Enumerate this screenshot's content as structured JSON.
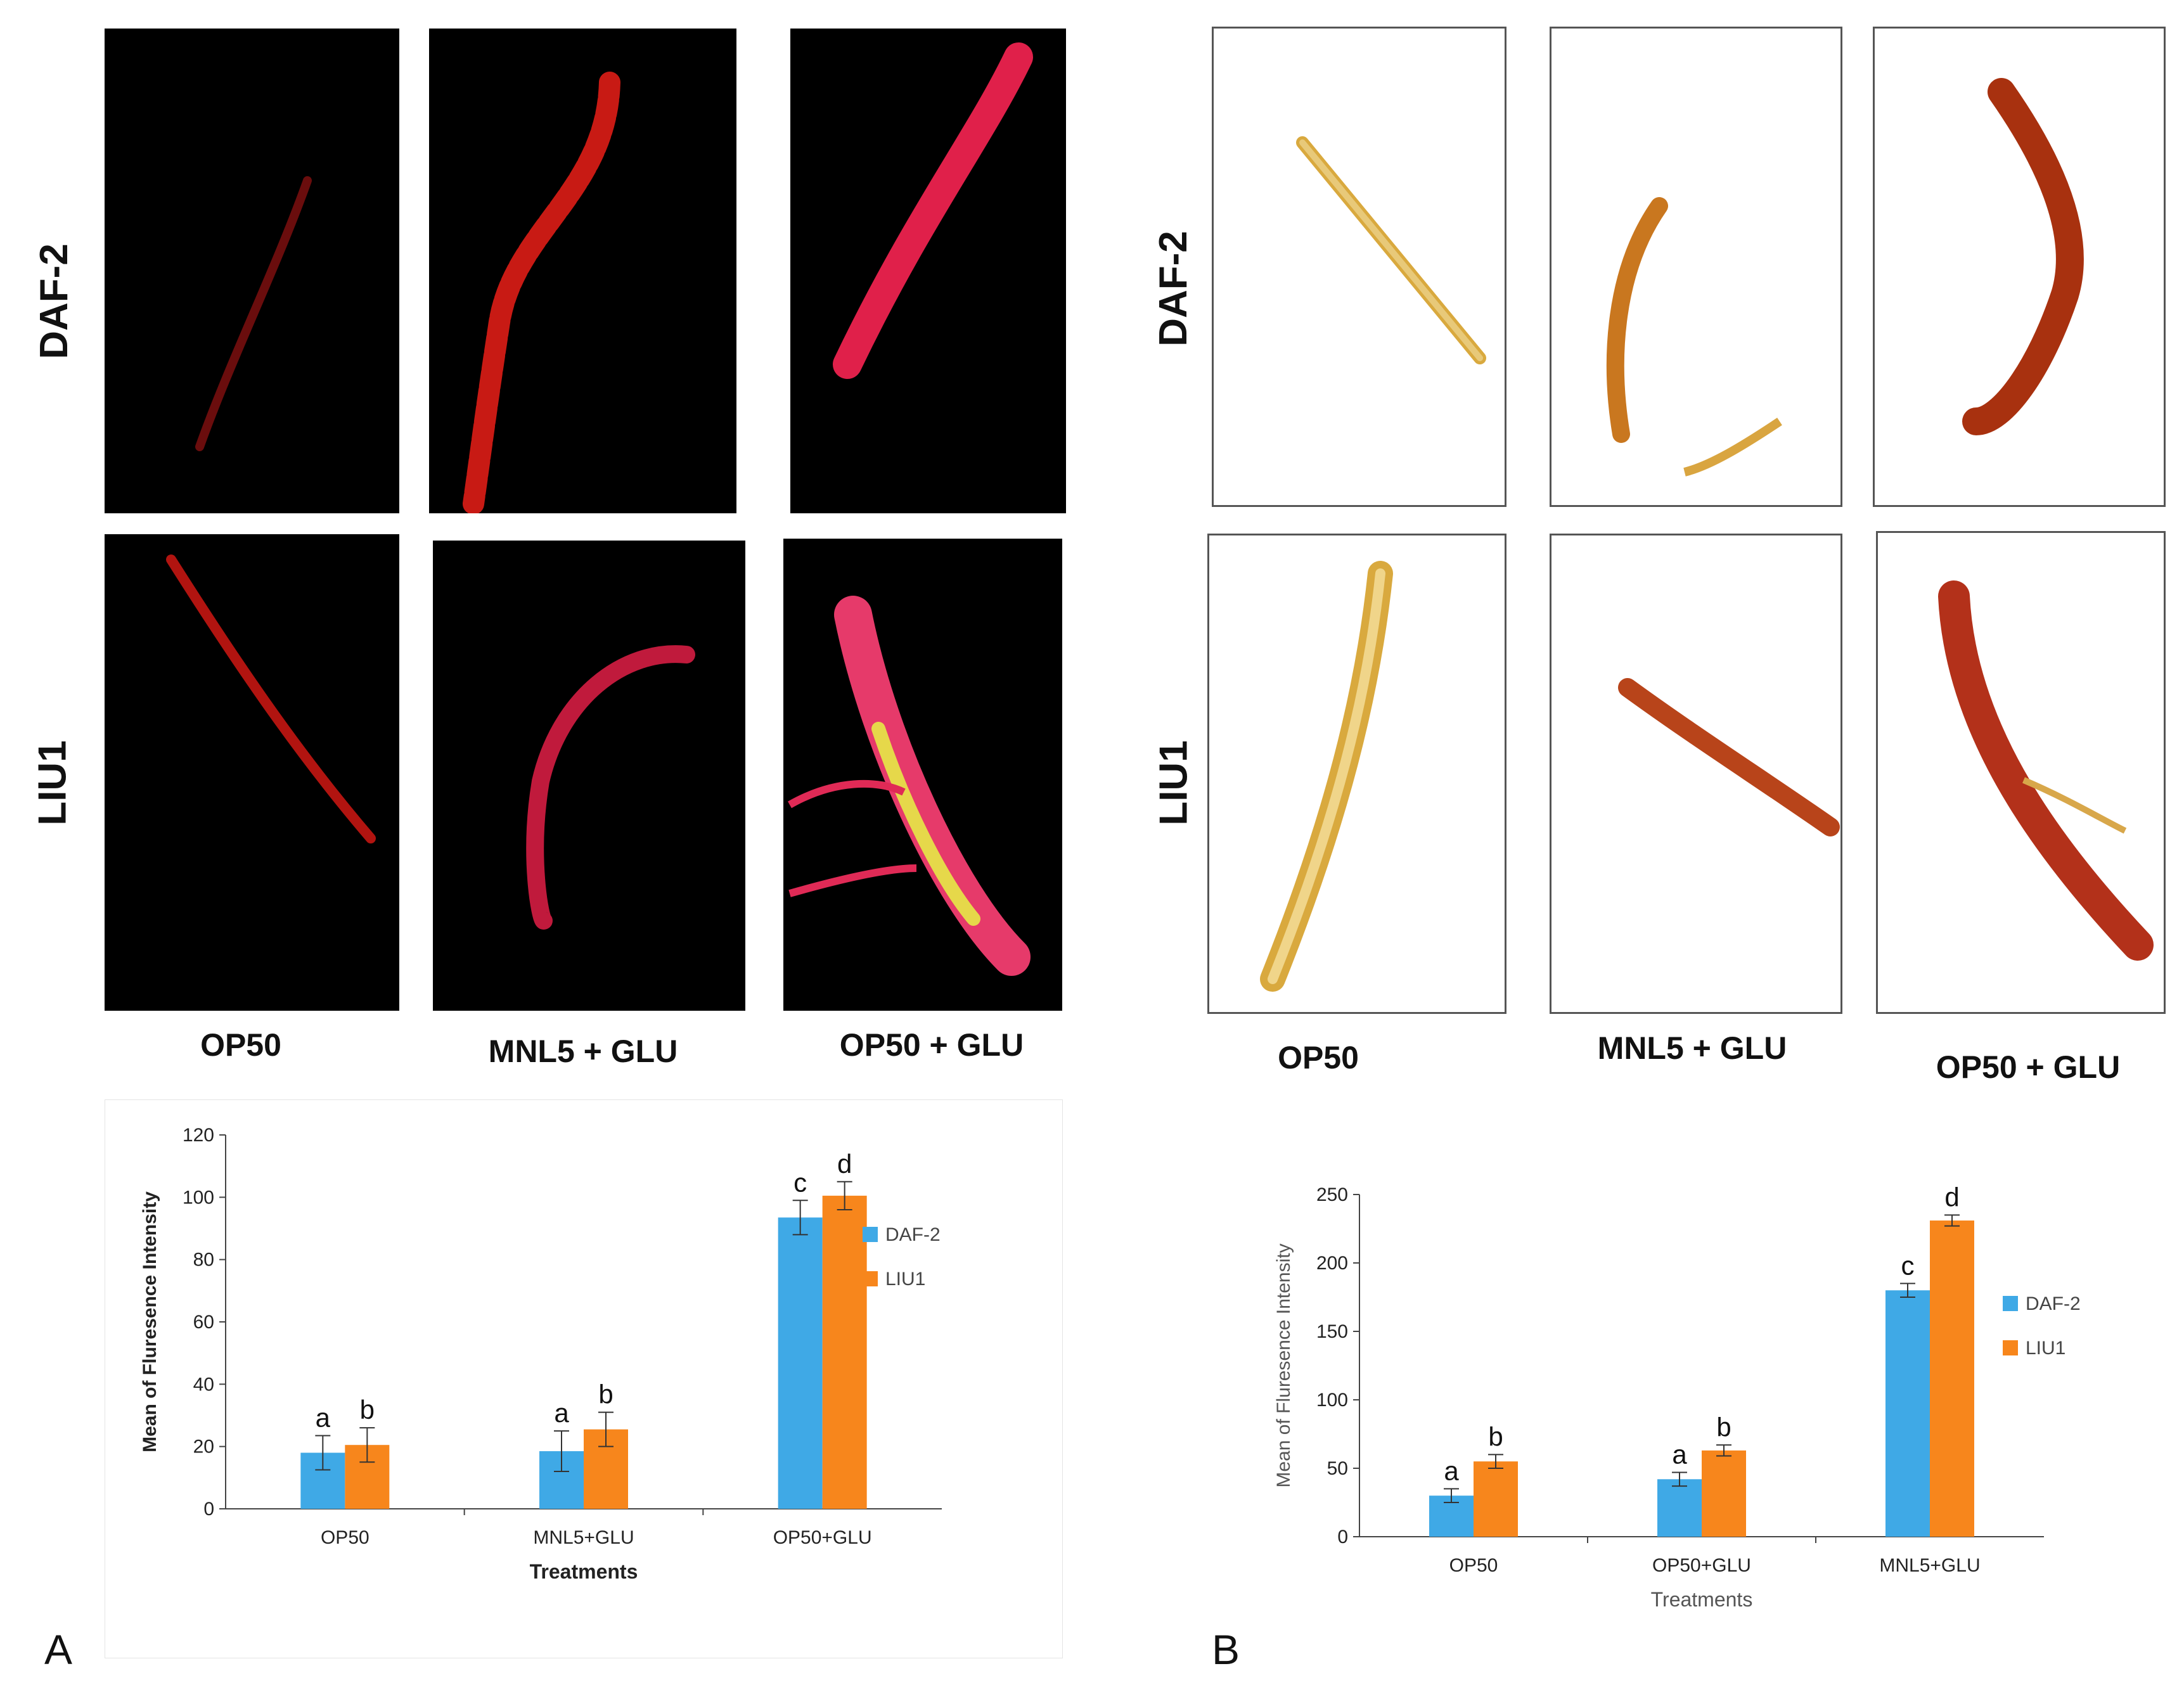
{
  "panel_a": {
    "letter": "A",
    "rows": [
      "DAF-2",
      "LIU1"
    ],
    "columns": [
      "OP50",
      "MNL5 + GLU",
      "OP50 + GLU"
    ]
  },
  "panel_b": {
    "letter": "B",
    "rows": [
      "DAF-2",
      "LIU1"
    ],
    "columns": [
      "OP50",
      "MNL5 + GLU",
      "OP50 + GLU"
    ]
  },
  "colors": {
    "daf2": "#3FA9E6",
    "liu1": "#F7861C"
  },
  "chart_data": [
    {
      "type": "bar",
      "id": "chart-a",
      "title": "",
      "xlabel": "Treatments",
      "ylabel": "Mean of Fluresence Intensity",
      "categories": [
        "OP50",
        "MNL5+GLU",
        "OP50+GLU"
      ],
      "ylim": [
        0,
        120
      ],
      "yticks": [
        0,
        20,
        40,
        60,
        80,
        100,
        120
      ],
      "legend_position": "right",
      "series": [
        {
          "name": "DAF-2",
          "color": "#3FA9E6",
          "values": [
            18,
            18.5,
            93.5
          ],
          "errors": [
            5.5,
            6.5,
            5.5
          ],
          "labels": [
            "a",
            "a",
            "c"
          ]
        },
        {
          "name": "LIU1",
          "color": "#F7861C",
          "values": [
            20.5,
            25.5,
            100.5
          ],
          "errors": [
            5.5,
            5.5,
            4.5
          ],
          "labels": [
            "b",
            "b",
            "d"
          ]
        }
      ]
    },
    {
      "type": "bar",
      "id": "chart-b",
      "title": "",
      "xlabel": "Treatments",
      "ylabel": "Mean of Fluresence Intensity",
      "categories": [
        "OP50",
        "OP50+GLU",
        "MNL5+GLU"
      ],
      "ylim": [
        0,
        250
      ],
      "yticks": [
        0,
        50,
        100,
        150,
        200,
        250
      ],
      "legend_position": "right",
      "series": [
        {
          "name": "DAF-2",
          "color": "#3FA9E6",
          "values": [
            30,
            42,
            180
          ],
          "errors": [
            5,
            5,
            5
          ],
          "labels": [
            "a",
            "a",
            "c"
          ]
        },
        {
          "name": "LIU1",
          "color": "#F7861C",
          "values": [
            55,
            63,
            231
          ],
          "errors": [
            5,
            4,
            4
          ],
          "labels": [
            "b",
            "b",
            "d"
          ]
        }
      ]
    }
  ]
}
